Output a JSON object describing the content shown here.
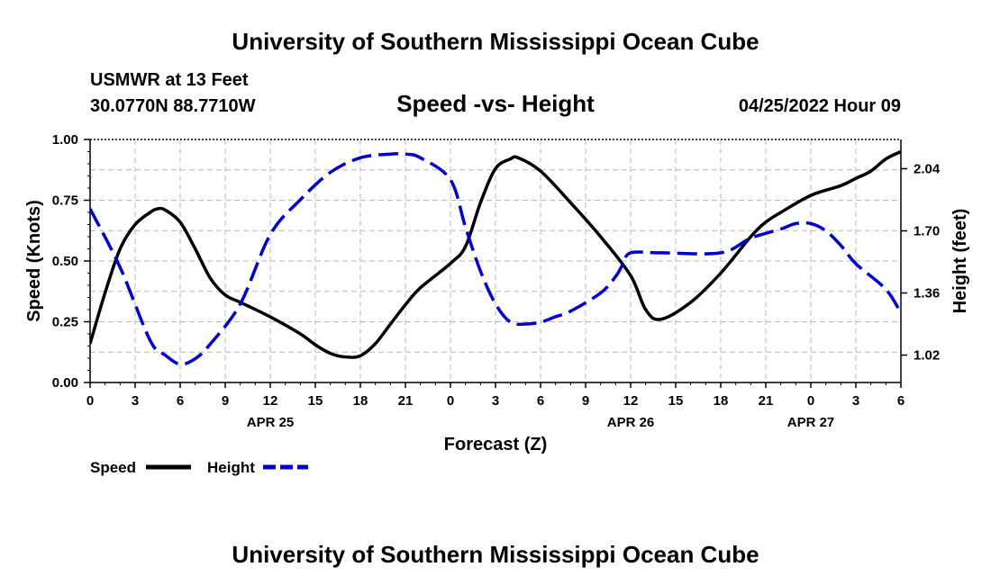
{
  "title": "University of Southern Mississippi Ocean Cube",
  "footer_title": "University of Southern Mississippi Ocean Cube",
  "station": "USMWR at 13 Feet",
  "coordinates": "30.0770N  88.7710W",
  "timestamp": "04/25/2022 Hour 09",
  "chart_data": {
    "type": "line",
    "title": "Speed -vs- Height",
    "xlabel": "Forecast (Z)",
    "ylabel": "Speed (Knots)",
    "y2label": "Height (feet)",
    "x_hours_from_start": [
      0,
      3,
      6,
      9,
      12,
      15,
      18,
      21,
      24,
      27,
      30,
      33,
      36,
      39,
      42,
      45,
      48,
      51,
      54
    ],
    "x_tick_labels": [
      "0",
      "3",
      "6",
      "9",
      "12",
      "15",
      "18",
      "21",
      "0",
      "3",
      "6",
      "9",
      "12",
      "15",
      "18",
      "21",
      "0",
      "3",
      "6"
    ],
    "x_date_labels": [
      {
        "hour": 12,
        "label": "APR 25"
      },
      {
        "hour": 36,
        "label": "APR 26"
      },
      {
        "hour": 48,
        "label": "APR 27"
      }
    ],
    "xlim": [
      0,
      54
    ],
    "ylim": [
      0,
      1
    ],
    "y_ticks": [
      "0.00",
      "0.25",
      "0.50",
      "0.75",
      "1.00"
    ],
    "y2lim": [
      0.87,
      2.2
    ],
    "y2_ticks": [
      "1.02",
      "1.36",
      "1.70",
      "2.04"
    ],
    "grid": true,
    "series": [
      {
        "name": "Speed",
        "axis": "left",
        "color": "#000000",
        "style": "solid",
        "x": [
          0,
          1,
          2,
          3,
          4,
          4.5,
          5,
          6,
          7,
          8,
          9,
          10,
          12,
          14,
          15,
          16,
          17,
          18,
          19,
          20,
          21,
          22,
          24,
          25,
          26,
          27,
          28,
          28.5,
          30,
          32,
          34,
          36,
          37,
          38,
          40,
          42,
          44,
          45,
          46,
          48,
          50,
          51,
          52,
          53,
          54
        ],
        "values": [
          0.16,
          0.37,
          0.55,
          0.65,
          0.7,
          0.715,
          0.71,
          0.66,
          0.55,
          0.43,
          0.36,
          0.33,
          0.27,
          0.2,
          0.155,
          0.12,
          0.105,
          0.11,
          0.16,
          0.24,
          0.32,
          0.39,
          0.49,
          0.56,
          0.74,
          0.88,
          0.92,
          0.925,
          0.87,
          0.74,
          0.6,
          0.44,
          0.3,
          0.26,
          0.33,
          0.45,
          0.6,
          0.66,
          0.7,
          0.77,
          0.81,
          0.84,
          0.87,
          0.92,
          0.95
        ]
      },
      {
        "name": "Height",
        "axis": "right",
        "color": "#0000cc",
        "style": "dashed",
        "x": [
          0,
          2,
          4,
          5,
          6,
          7,
          8,
          10,
          12,
          14,
          16,
          18,
          20,
          21,
          22,
          24,
          25,
          26,
          27,
          28,
          29,
          30,
          31,
          32,
          34,
          35,
          35.5,
          36,
          38,
          42,
          44,
          46,
          47,
          48,
          49,
          50,
          51,
          53,
          54
        ],
        "values": [
          1.82,
          1.5,
          1.1,
          1.02,
          0.97,
          1.0,
          1.08,
          1.3,
          1.68,
          1.87,
          2.02,
          2.1,
          2.12,
          2.12,
          2.1,
          1.98,
          1.72,
          1.48,
          1.3,
          1.2,
          1.19,
          1.2,
          1.23,
          1.26,
          1.36,
          1.45,
          1.52,
          1.58,
          1.58,
          1.58,
          1.66,
          1.71,
          1.74,
          1.74,
          1.7,
          1.62,
          1.52,
          1.38,
          1.25
        ]
      }
    ],
    "legend": [
      {
        "label": "Speed",
        "color": "#000000",
        "style": "solid"
      },
      {
        "label": "Height",
        "color": "#0000cc",
        "style": "dashed"
      }
    ],
    "legend_placement": "bottom-left"
  }
}
